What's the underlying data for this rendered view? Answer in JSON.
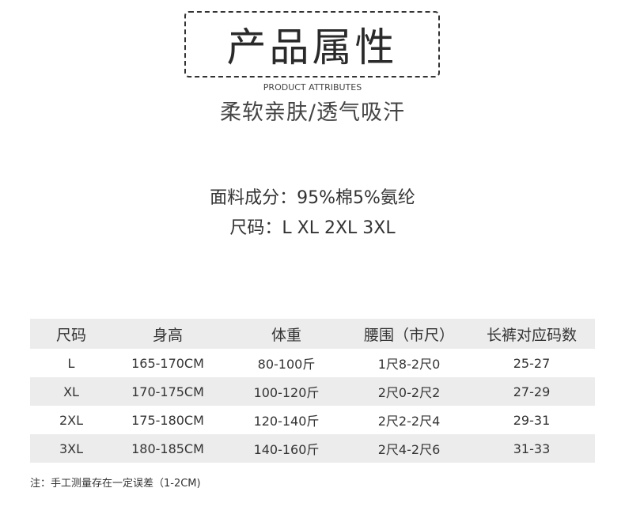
{
  "header": {
    "title": "产品属性",
    "subtitle_en": "PRODUCT ATTRIBUTES",
    "tagline": "柔软亲肤/透气吸汗"
  },
  "specs": {
    "fabric": "面料成分：95%棉5%氨纶",
    "sizes": "尺码：L XL 2XL 3XL"
  },
  "table": {
    "columns": [
      "尺码",
      "身高",
      "体重",
      "腰围（市尺）",
      "长裤对应码数"
    ],
    "rows": [
      [
        "L",
        "165-170CM",
        "80-100斤",
        "1尺8-2尺0",
        "25-27"
      ],
      [
        "XL",
        "170-175CM",
        "100-120斤",
        "2尺0-2尺2",
        "27-29"
      ],
      [
        "2XL",
        "175-180CM",
        "120-140斤",
        "2尺2-2尺4",
        "29-31"
      ],
      [
        "3XL",
        "180-185CM",
        "140-160斤",
        "2尺4-2尺6",
        "31-33"
      ]
    ]
  },
  "note": "注：手工测量存在一定误差（1-2CM)"
}
